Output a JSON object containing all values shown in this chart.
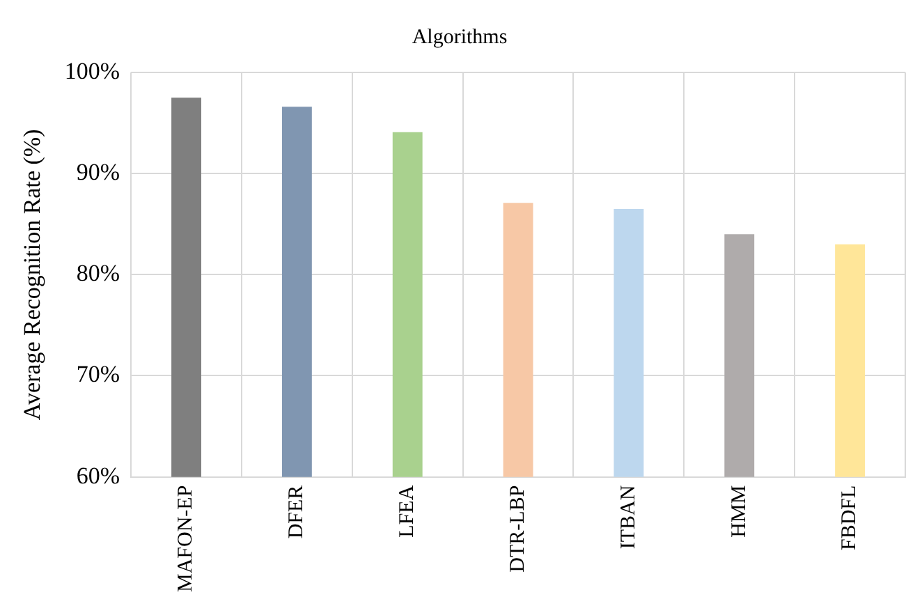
{
  "chart_data": {
    "type": "bar",
    "title": "Algorithms",
    "ylabel": "Average Recognition Rate (%)",
    "categories": [
      "MAFON-EP",
      "DFER",
      "LFEA",
      "DTR-LBP",
      "ITBAN",
      "HMM",
      "FBDFL"
    ],
    "values": [
      97.5,
      96.6,
      94.1,
      87.1,
      86.5,
      84,
      83
    ],
    "colors": [
      "#7f7f7f",
      "#8096b1",
      "#a9d18e",
      "#f7c8a6",
      "#bdd7ee",
      "#afabab",
      "#ffe699"
    ],
    "ylim": [
      60,
      100
    ],
    "yticks": [
      {
        "value": 60,
        "label": "60%"
      },
      {
        "value": 70,
        "label": "70%"
      },
      {
        "value": 80,
        "label": "80%"
      },
      {
        "value": 90,
        "label": "90%"
      },
      {
        "value": 100,
        "label": "100%"
      }
    ],
    "grid": true
  }
}
